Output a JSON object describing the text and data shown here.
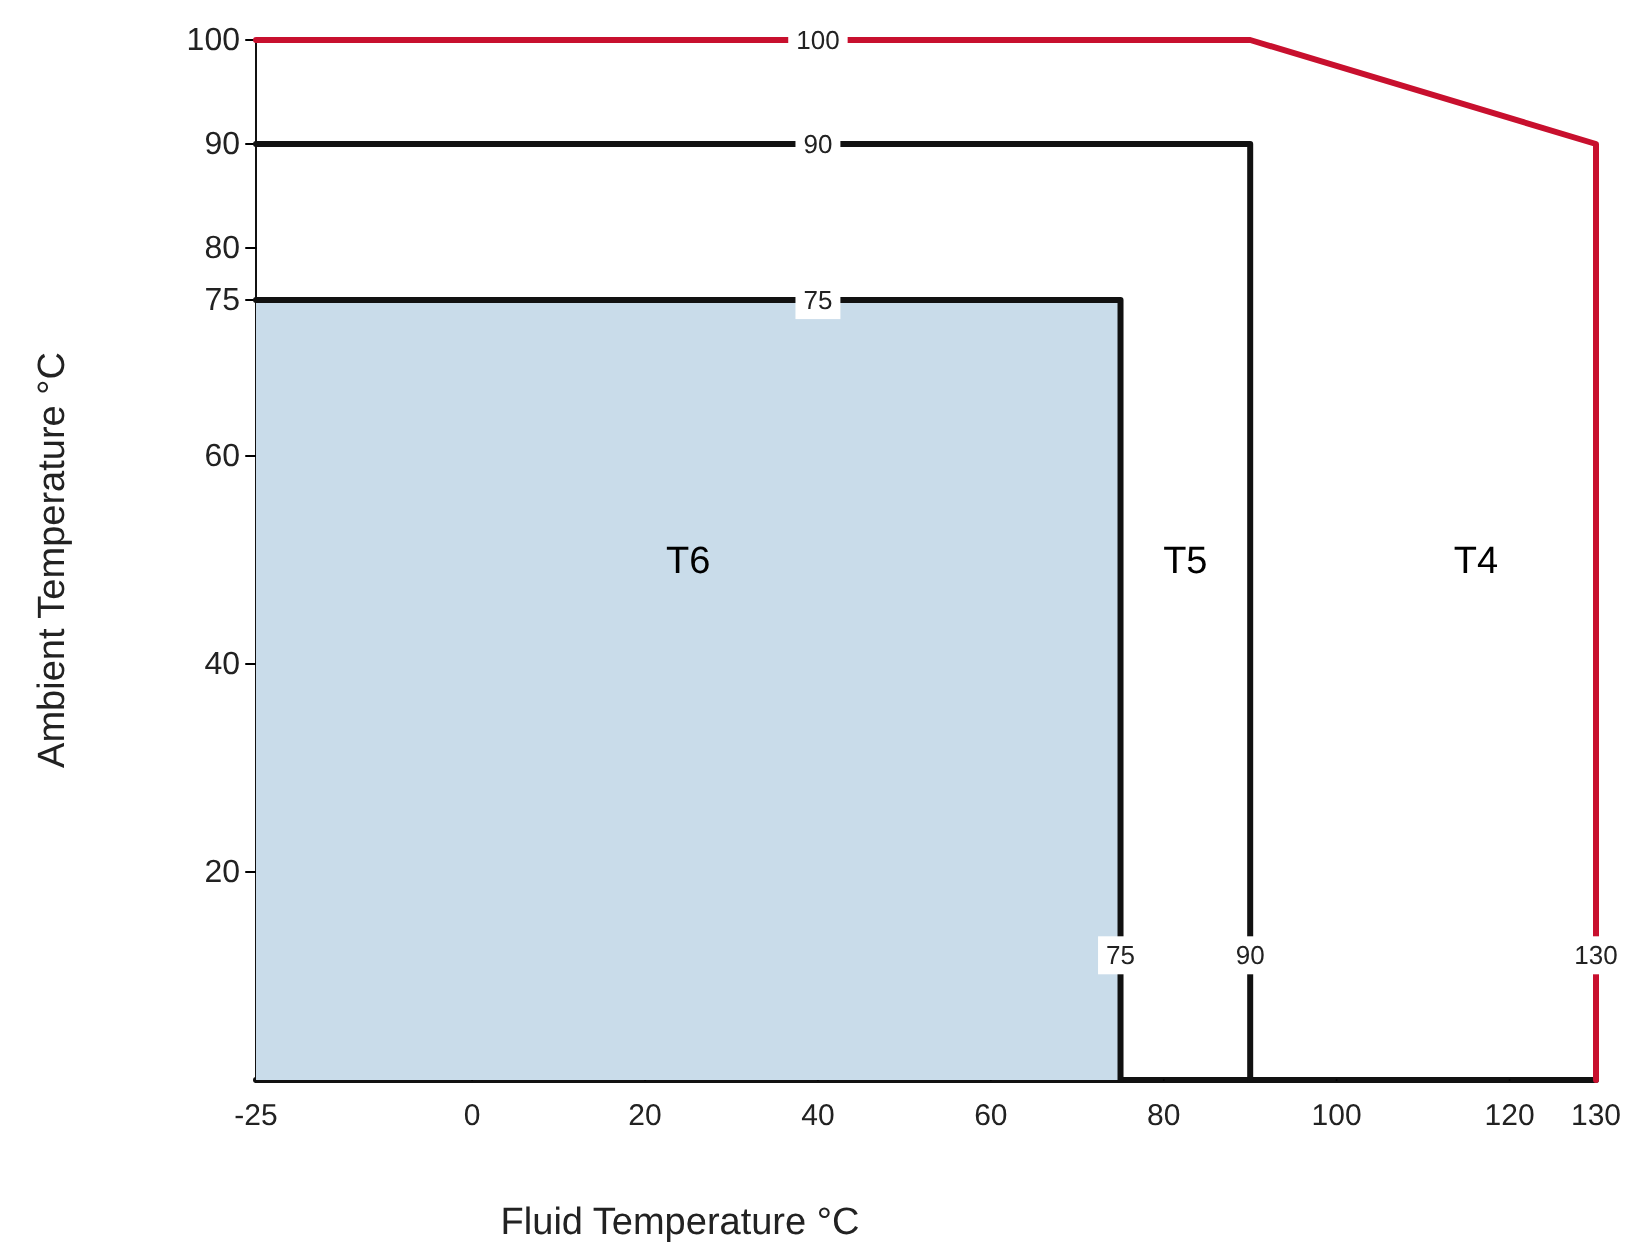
{
  "chart_data": {
    "type": "line",
    "xlabel": "Fluid Temperature °C",
    "ylabel": "Ambient Temperature °C",
    "xlim": [
      -25,
      130
    ],
    "xticks": [
      -25,
      0,
      20,
      40,
      60,
      80,
      100,
      120,
      130
    ],
    "ylim": [
      0,
      100
    ],
    "yticks": [
      20,
      40,
      60,
      75,
      80,
      90,
      100
    ],
    "grid": false,
    "line_style": "solid",
    "series": [
      {
        "name": "T6",
        "type": "area",
        "color": "#c9dcea",
        "x": [
          -25,
          75,
          75
        ],
        "values": [
          75,
          75,
          0
        ]
      },
      {
        "name": "T5",
        "type": "line",
        "color": "#111111",
        "x": [
          -25,
          90,
          90
        ],
        "values": [
          90,
          90,
          0
        ]
      },
      {
        "name": "T4",
        "type": "line",
        "color": "#c8102e",
        "x": [
          -25,
          90,
          130,
          130
        ],
        "values": [
          100,
          100,
          90,
          0
        ]
      }
    ],
    "annotations": [
      {
        "text": "100",
        "x": 40,
        "y": 100
      },
      {
        "text": "90",
        "x": 40,
        "y": 90
      },
      {
        "text": "75",
        "x": 40,
        "y": 75
      },
      {
        "text": "75",
        "x": 75,
        "y": 12
      },
      {
        "text": "90",
        "x": 90,
        "y": 12
      },
      {
        "text": "130",
        "x": 130,
        "y": 12
      }
    ]
  }
}
